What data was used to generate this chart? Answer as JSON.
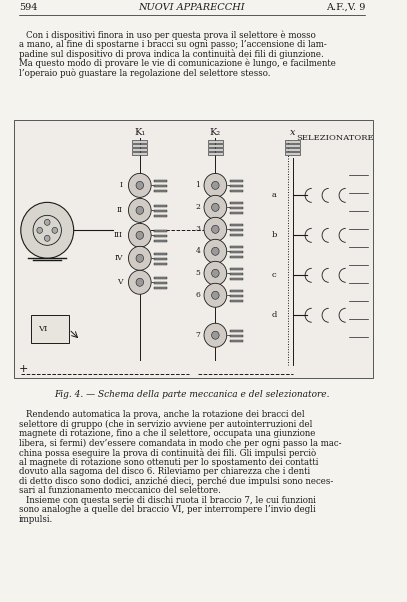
{
  "page_number": "594",
  "journal_title": "NUOVI APPARECCHI",
  "journal_ref": "A.F.,V. 9",
  "bg_color": "#f5f3ee",
  "text_color": "#1a1a1a",
  "body_text_1": "Con i dispositivi finora in uso per questa prova il selettore è mosso\na mano, al fine di spostarne i bracci su ogni passo; l’accensione di lam-\npadine sul dispositivo di prova indica la continuità dei fili di giunzione.\nMa questo modo di provare le vie di comunicazione è lungo, e facilmente\nl’operaio può guastare la regolazione del selettore stesso.",
  "fig_caption": "Fig. 4. — Schema della parte meccanica e del selezionatore.",
  "body_text_2": "Rendendo automatica la prova, anche la rotazione dei bracci del\nselettore di gruppo (che in servizio avviene per autointerruzioni del\nmagnete di rotazione, fino a che il selettore, occupata una giunzione\nlibera, si fermi) dev’essere comandata in modo che per ogni passo la mac-\nchina possa eseguire la prova di continuità dei fili. Gli impulsi perciò\nal magnete di rotazione sono ottenuti per lo spostamento dei contatti\ndovuto alla sagoma del disco 6. Rileviamo per chiarezza che i denti\ndi detto disco sono dodici, anziché dieci, perché due impulsi sono neces-\nsari al funzionamento meccanico del selettore.\n    Insieme con questa serie di dischi ruota il braccio 7, le cui funzioni\nsono analoghe a quelle del braccio VI, per interrompere l’invio degli\nimpulsi."
}
